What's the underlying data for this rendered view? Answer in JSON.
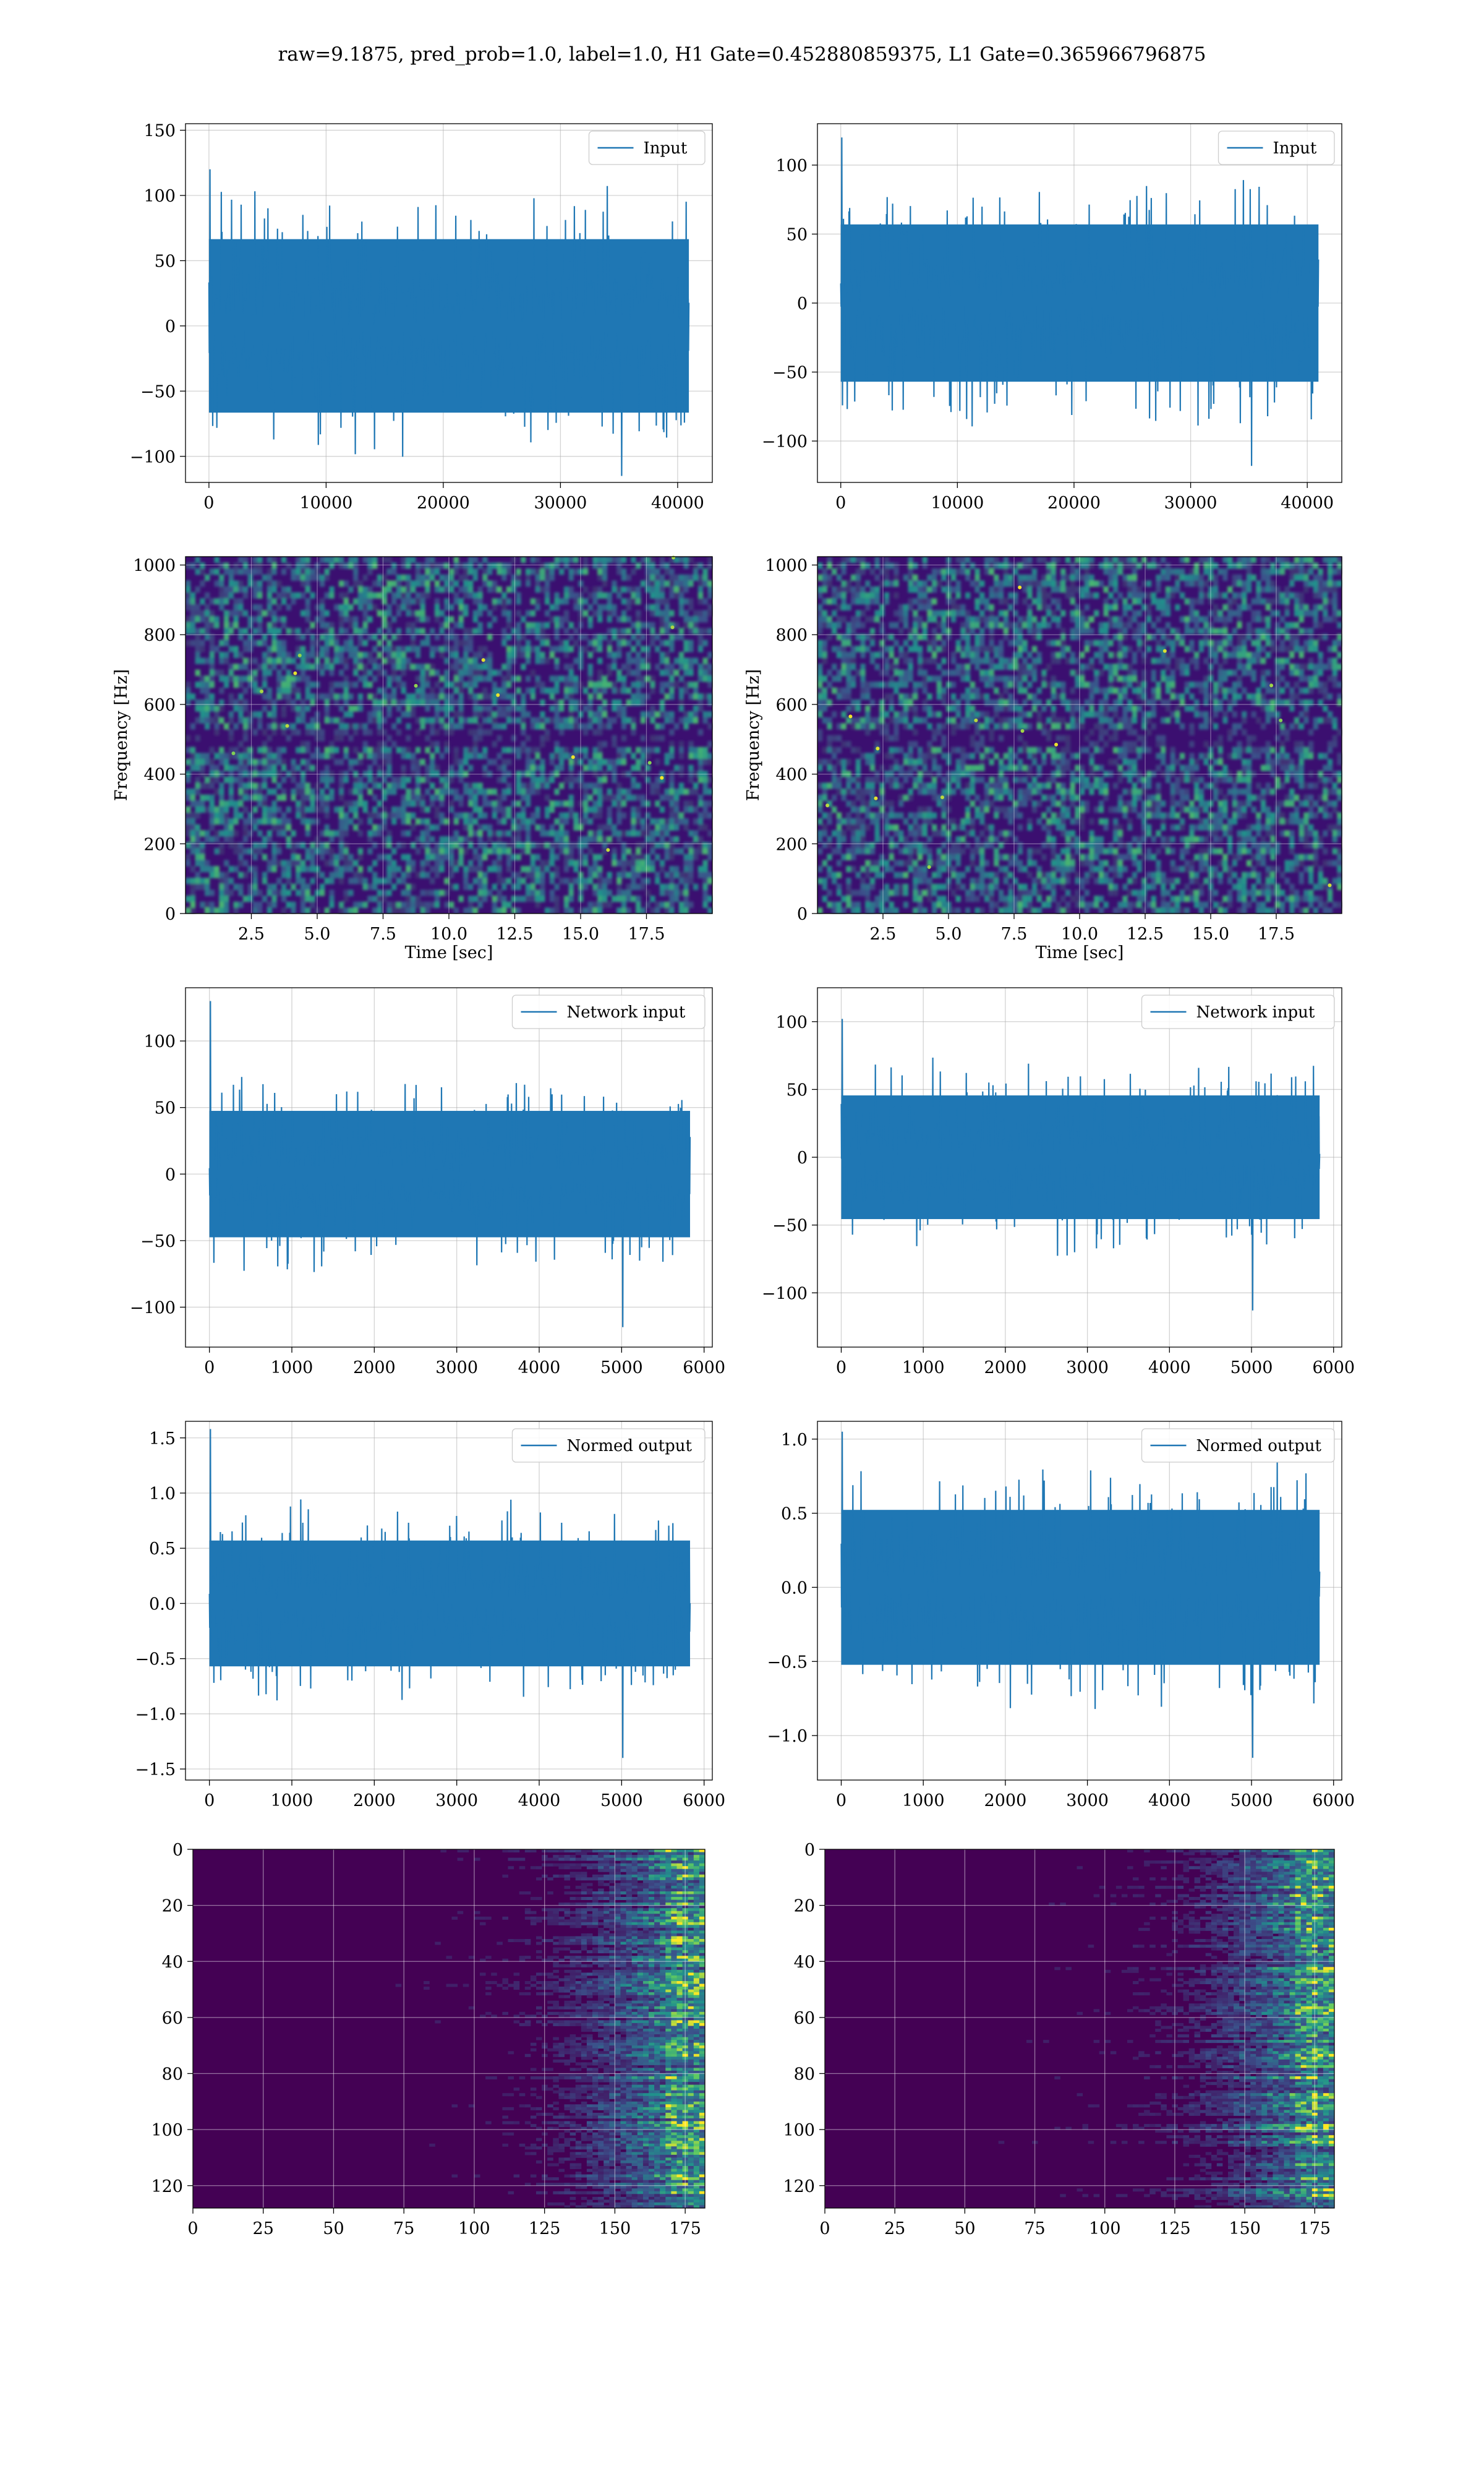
{
  "figure_title": "raw=9.1875, pred_prob=1.0, label=1.0, H1 Gate=0.452880859375, L1 Gate=0.365966796875",
  "colors": {
    "series": "#1f77b4",
    "grid": "#b0b0b0",
    "spectrogram_background": "#3b0f70",
    "viridis_low": "#440154",
    "viridis_high": "#fde725"
  },
  "chart_data": [
    {
      "type": "line",
      "id": "input-h1",
      "series": [
        {
          "name": "Input"
        }
      ],
      "x_ticks": [
        0,
        10000,
        20000,
        30000,
        40000
      ],
      "y_ticks": [
        -100,
        -50,
        0,
        50,
        100,
        150
      ],
      "xlim": [
        -2000,
        42960
      ],
      "ylim": [
        -120,
        155
      ],
      "x_extent": [
        0,
        40960
      ],
      "noise_envelope": 70,
      "peak_range": [
        -115,
        120
      ],
      "xlabel": "",
      "ylabel": "",
      "legend": "upper right",
      "grid": true
    },
    {
      "type": "line",
      "id": "input-l1",
      "series": [
        {
          "name": "Input"
        }
      ],
      "x_ticks": [
        0,
        10000,
        20000,
        30000,
        40000
      ],
      "y_ticks": [
        -100,
        -50,
        0,
        50,
        100
      ],
      "xlim": [
        -2000,
        42960
      ],
      "ylim": [
        -130,
        130
      ],
      "x_extent": [
        0,
        40960
      ],
      "noise_envelope": 60,
      "peak_range": [
        -118,
        120
      ],
      "xlabel": "",
      "ylabel": "",
      "legend": "upper right",
      "grid": true
    },
    {
      "type": "heatmap",
      "id": "spectrogram-h1",
      "x_ticks": [
        2.5,
        5.0,
        7.5,
        10.0,
        12.5,
        15.0,
        17.5
      ],
      "y_ticks": [
        0,
        200,
        400,
        600,
        800,
        1000
      ],
      "xlim": [
        0,
        20
      ],
      "ylim": [
        0,
        1024
      ],
      "xlabel": "Time [sec]",
      "ylabel": "Frequency [Hz]",
      "grid": true
    },
    {
      "type": "heatmap",
      "id": "spectrogram-l1",
      "x_ticks": [
        2.5,
        5.0,
        7.5,
        10.0,
        12.5,
        15.0,
        17.5
      ],
      "y_ticks": [
        0,
        200,
        400,
        600,
        800,
        1000
      ],
      "xlim": [
        0,
        20
      ],
      "ylim": [
        0,
        1024
      ],
      "xlabel": "Time [sec]",
      "ylabel": "Frequency [Hz]",
      "grid": true
    },
    {
      "type": "line",
      "id": "network-input-h1",
      "series": [
        {
          "name": "Network input"
        }
      ],
      "x_ticks": [
        0,
        1000,
        2000,
        3000,
        4000,
        5000,
        6000
      ],
      "y_ticks": [
        -100,
        -50,
        0,
        50,
        100
      ],
      "xlim": [
        -290,
        6100
      ],
      "ylim": [
        -130,
        140
      ],
      "x_extent": [
        0,
        5830
      ],
      "noise_envelope": 50,
      "peak_range": [
        -115,
        130
      ],
      "xlabel": "",
      "ylabel": "",
      "legend": "upper right",
      "grid": true
    },
    {
      "type": "line",
      "id": "network-input-l1",
      "series": [
        {
          "name": "Network input"
        }
      ],
      "x_ticks": [
        0,
        1000,
        2000,
        3000,
        4000,
        5000,
        6000
      ],
      "y_ticks": [
        -100,
        -50,
        0,
        50,
        100
      ],
      "xlim": [
        -290,
        6100
      ],
      "ylim": [
        -140,
        125
      ],
      "x_extent": [
        0,
        5830
      ],
      "noise_envelope": 48,
      "peak_range": [
        -113,
        102
      ],
      "xlabel": "",
      "ylabel": "",
      "legend": "upper right",
      "grid": true
    },
    {
      "type": "line",
      "id": "normed-output-h1",
      "series": [
        {
          "name": "Normed output"
        }
      ],
      "x_ticks": [
        0,
        1000,
        2000,
        3000,
        4000,
        5000,
        6000
      ],
      "y_ticks": [
        -1.5,
        -1.0,
        -0.5,
        0.0,
        0.5,
        1.0,
        1.5
      ],
      "xlim": [
        -290,
        6100
      ],
      "ylim": [
        -1.6,
        1.65
      ],
      "x_extent": [
        0,
        5830
      ],
      "noise_envelope": 0.6,
      "peak_range": [
        -1.4,
        1.58
      ],
      "xlabel": "",
      "ylabel": "",
      "legend": "upper right",
      "grid": true
    },
    {
      "type": "line",
      "id": "normed-output-l1",
      "series": [
        {
          "name": "Normed output"
        }
      ],
      "x_ticks": [
        0,
        1000,
        2000,
        3000,
        4000,
        5000,
        6000
      ],
      "y_ticks": [
        -1.0,
        -0.5,
        0.0,
        0.5,
        1.0
      ],
      "xlim": [
        -290,
        6100
      ],
      "ylim": [
        -1.3,
        1.12
      ],
      "x_extent": [
        0,
        5830
      ],
      "noise_envelope": 0.55,
      "peak_range": [
        -1.15,
        1.05
      ],
      "xlabel": "",
      "ylabel": "",
      "legend": "upper right",
      "grid": true
    },
    {
      "type": "heatmap",
      "id": "features-h1",
      "x_ticks": [
        0,
        25,
        50,
        75,
        100,
        125,
        150,
        175
      ],
      "y_ticks": [
        0,
        20,
        40,
        60,
        80,
        100,
        120
      ],
      "xlim": [
        0,
        182
      ],
      "ylim": [
        128,
        0
      ],
      "xlabel": "",
      "ylabel": "",
      "grid": true
    },
    {
      "type": "heatmap",
      "id": "features-l1",
      "x_ticks": [
        0,
        25,
        50,
        75,
        100,
        125,
        150,
        175
      ],
      "y_ticks": [
        0,
        20,
        40,
        60,
        80,
        100,
        120
      ],
      "xlim": [
        0,
        182
      ],
      "ylim": [
        128,
        0
      ],
      "xlabel": "",
      "ylabel": "",
      "grid": true
    }
  ]
}
